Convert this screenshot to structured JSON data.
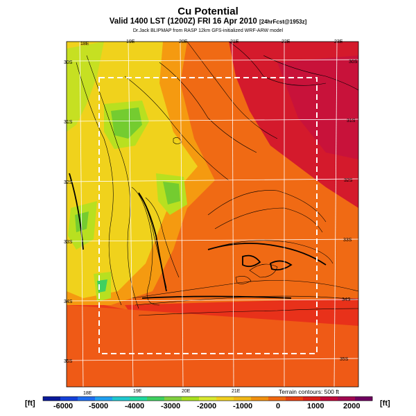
{
  "header": {
    "title": "Cu Potential",
    "subtitle": "Valid 1400 LST (1200Z) FRI 16 Apr 2010",
    "subtitle_extra": "[24hrFcst@1953z]",
    "credit": "Dr.Jack BLIPMAP from RASP 12km GFS-initialized WRF-ARW model"
  },
  "map": {
    "lon_labels": [
      "18E",
      "19E",
      "20E",
      "21E",
      "22E",
      "23E"
    ],
    "lat_labels": [
      "30S",
      "31S",
      "32S",
      "33S",
      "34S",
      "35S"
    ],
    "terrain_note": "Terrain contours: 500 ft"
  },
  "colorbar": {
    "unit_left": "[ft]",
    "unit_right": "[ft]",
    "ticks": [
      "-6000",
      "-5000",
      "-4000",
      "-3000",
      "-2000",
      "-1000",
      "0",
      "1000",
      "2000"
    ],
    "colors": [
      "#0a1a9a",
      "#1540d8",
      "#1e6ef0",
      "#20a0f0",
      "#20c8d0",
      "#20d8a0",
      "#40d060",
      "#80d040",
      "#a8e020",
      "#d8e830",
      "#f0d020",
      "#f0b818",
      "#f09010",
      "#f06810",
      "#e84010",
      "#d82018",
      "#c00838",
      "#a00850",
      "#700060"
    ]
  },
  "palette": {
    "red": "#e8311a",
    "orange": "#f06a14",
    "amber": "#f59a10",
    "yellow": "#f0d21c",
    "lime": "#b8e020",
    "green": "#74cc30",
    "deep_red": "#d41a2c",
    "magenta_red": "#c8123a"
  }
}
